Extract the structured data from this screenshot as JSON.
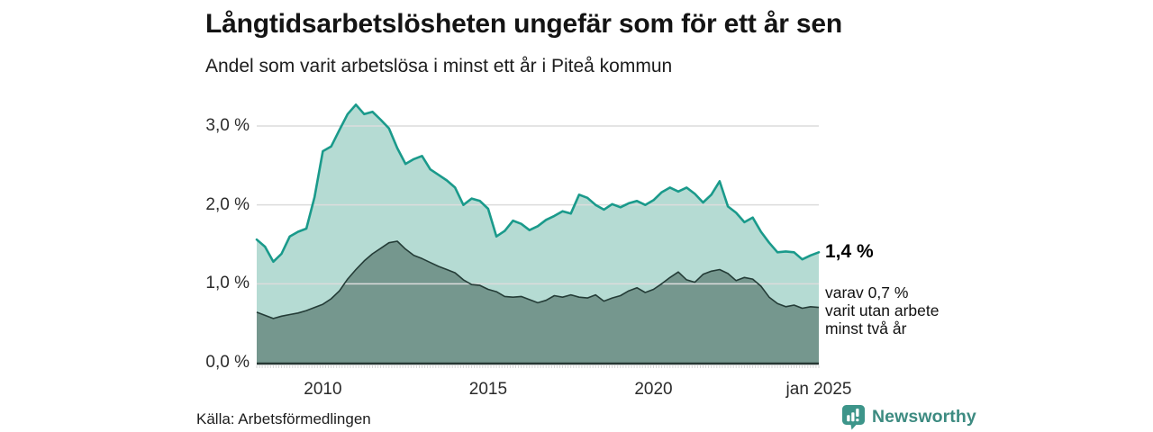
{
  "header": {
    "title": "Långtidsarbetslösheten ungefär som för ett år sen",
    "subtitle": "Andel som varit arbetslösa i minst ett år i Piteå kommun"
  },
  "source": {
    "text": "Källa: Arbetsförmedlingen"
  },
  "logo": {
    "text": "Newsworthy",
    "icon": "bar-chart-speech-bubble-icon",
    "color": "#3d958a"
  },
  "colors": {
    "background": "#ffffff",
    "grid": "#dcdcdc",
    "baseline": "#263733",
    "month_tick": "#00000029",
    "title_text": "#141414",
    "axis_text": "#2b2b2b"
  },
  "chart_data": {
    "type": "area",
    "title": "Långtidsarbetslösheten ungefär som för ett år sen",
    "subtitle": "Andel som varit arbetslösa i minst ett år i Piteå kommun",
    "unit": "%",
    "xlabel": "",
    "ylabel": "",
    "xlim": [
      2008,
      2025
    ],
    "ylim": [
      0,
      3.4
    ],
    "grid": "horizontal",
    "legend_position": "none",
    "x_ticks": [
      {
        "label": "2010",
        "year": 2010
      },
      {
        "label": "2015",
        "year": 2015
      },
      {
        "label": "2020",
        "year": 2020
      },
      {
        "label": "jan 2025",
        "year": 2025
      }
    ],
    "y_ticks": [
      {
        "label": "0,0 %",
        "value": 0
      },
      {
        "label": "1,0 %",
        "value": 1
      },
      {
        "label": "2,0 %",
        "value": 2
      },
      {
        "label": "3,0 %",
        "value": 3
      }
    ],
    "annotations": {
      "primary": {
        "text": "1,4 %",
        "value": 1.4,
        "at_year": 2025
      },
      "secondary": {
        "lines": [
          "varav 0,7 %",
          "varit utan arbete",
          "minst två år"
        ],
        "value": 0.7,
        "at_year": 2025
      }
    },
    "series": [
      {
        "name": "Arbetslösa minst ett år",
        "end_label": "1,4 %",
        "line_color": "#1a9a8b",
        "fill_color": "#b5dbd3",
        "line_width": 2.6,
        "points": [
          [
            2008.0,
            1.56
          ],
          [
            2008.25,
            1.47
          ],
          [
            2008.5,
            1.28
          ],
          [
            2008.75,
            1.38
          ],
          [
            2009.0,
            1.6
          ],
          [
            2009.25,
            1.66
          ],
          [
            2009.5,
            1.7
          ],
          [
            2009.75,
            2.1
          ],
          [
            2010.0,
            2.68
          ],
          [
            2010.25,
            2.74
          ],
          [
            2010.5,
            2.95
          ],
          [
            2010.75,
            3.15
          ],
          [
            2011.0,
            3.27
          ],
          [
            2011.25,
            3.15
          ],
          [
            2011.5,
            3.18
          ],
          [
            2011.75,
            3.08
          ],
          [
            2012.0,
            2.97
          ],
          [
            2012.25,
            2.72
          ],
          [
            2012.5,
            2.52
          ],
          [
            2012.75,
            2.58
          ],
          [
            2013.0,
            2.62
          ],
          [
            2013.25,
            2.45
          ],
          [
            2013.5,
            2.38
          ],
          [
            2013.75,
            2.31
          ],
          [
            2014.0,
            2.22
          ],
          [
            2014.25,
            2.0
          ],
          [
            2014.5,
            2.08
          ],
          [
            2014.75,
            2.05
          ],
          [
            2015.0,
            1.95
          ],
          [
            2015.25,
            1.6
          ],
          [
            2015.5,
            1.67
          ],
          [
            2015.75,
            1.8
          ],
          [
            2016.0,
            1.76
          ],
          [
            2016.25,
            1.68
          ],
          [
            2016.5,
            1.73
          ],
          [
            2016.75,
            1.81
          ],
          [
            2017.0,
            1.86
          ],
          [
            2017.25,
            1.92
          ],
          [
            2017.5,
            1.89
          ],
          [
            2017.75,
            2.13
          ],
          [
            2018.0,
            2.09
          ],
          [
            2018.25,
            2.0
          ],
          [
            2018.5,
            1.94
          ],
          [
            2018.75,
            2.01
          ],
          [
            2019.0,
            1.97
          ],
          [
            2019.25,
            2.02
          ],
          [
            2019.5,
            2.05
          ],
          [
            2019.75,
            2.0
          ],
          [
            2020.0,
            2.06
          ],
          [
            2020.25,
            2.16
          ],
          [
            2020.5,
            2.22
          ],
          [
            2020.75,
            2.17
          ],
          [
            2021.0,
            2.22
          ],
          [
            2021.25,
            2.14
          ],
          [
            2021.5,
            2.03
          ],
          [
            2021.75,
            2.13
          ],
          [
            2022.0,
            2.3
          ],
          [
            2022.25,
            1.98
          ],
          [
            2022.5,
            1.9
          ],
          [
            2022.75,
            1.78
          ],
          [
            2023.0,
            1.84
          ],
          [
            2023.25,
            1.66
          ],
          [
            2023.5,
            1.52
          ],
          [
            2023.75,
            1.4
          ],
          [
            2024.0,
            1.41
          ],
          [
            2024.25,
            1.4
          ],
          [
            2024.5,
            1.31
          ],
          [
            2024.75,
            1.36
          ],
          [
            2025.0,
            1.4
          ]
        ]
      },
      {
        "name": "Varav utan arbete minst två år",
        "end_label": "0,7 %",
        "line_color": "#243c37",
        "fill_color": "#75978e",
        "line_width": 1.6,
        "points": [
          [
            2008.0,
            0.64
          ],
          [
            2008.25,
            0.6
          ],
          [
            2008.5,
            0.56
          ],
          [
            2008.75,
            0.59
          ],
          [
            2009.0,
            0.61
          ],
          [
            2009.25,
            0.63
          ],
          [
            2009.5,
            0.66
          ],
          [
            2009.75,
            0.7
          ],
          [
            2010.0,
            0.74
          ],
          [
            2010.25,
            0.81
          ],
          [
            2010.5,
            0.91
          ],
          [
            2010.75,
            1.06
          ],
          [
            2011.0,
            1.18
          ],
          [
            2011.25,
            1.29
          ],
          [
            2011.5,
            1.38
          ],
          [
            2011.75,
            1.45
          ],
          [
            2012.0,
            1.52
          ],
          [
            2012.25,
            1.54
          ],
          [
            2012.5,
            1.44
          ],
          [
            2012.75,
            1.36
          ],
          [
            2013.0,
            1.32
          ],
          [
            2013.25,
            1.27
          ],
          [
            2013.5,
            1.22
          ],
          [
            2013.75,
            1.18
          ],
          [
            2014.0,
            1.14
          ],
          [
            2014.25,
            1.05
          ],
          [
            2014.5,
            0.99
          ],
          [
            2014.75,
            0.98
          ],
          [
            2015.0,
            0.93
          ],
          [
            2015.25,
            0.9
          ],
          [
            2015.5,
            0.84
          ],
          [
            2015.75,
            0.83
          ],
          [
            2016.0,
            0.84
          ],
          [
            2016.25,
            0.8
          ],
          [
            2016.5,
            0.76
          ],
          [
            2016.75,
            0.79
          ],
          [
            2017.0,
            0.85
          ],
          [
            2017.25,
            0.83
          ],
          [
            2017.5,
            0.86
          ],
          [
            2017.75,
            0.83
          ],
          [
            2018.0,
            0.82
          ],
          [
            2018.25,
            0.86
          ],
          [
            2018.5,
            0.78
          ],
          [
            2018.75,
            0.82
          ],
          [
            2019.0,
            0.85
          ],
          [
            2019.25,
            0.91
          ],
          [
            2019.5,
            0.95
          ],
          [
            2019.75,
            0.89
          ],
          [
            2020.0,
            0.93
          ],
          [
            2020.25,
            1.0
          ],
          [
            2020.5,
            1.08
          ],
          [
            2020.75,
            1.15
          ],
          [
            2021.0,
            1.05
          ],
          [
            2021.25,
            1.02
          ],
          [
            2021.5,
            1.12
          ],
          [
            2021.75,
            1.16
          ],
          [
            2022.0,
            1.18
          ],
          [
            2022.25,
            1.13
          ],
          [
            2022.5,
            1.04
          ],
          [
            2022.75,
            1.08
          ],
          [
            2023.0,
            1.06
          ],
          [
            2023.25,
            0.97
          ],
          [
            2023.5,
            0.83
          ],
          [
            2023.75,
            0.75
          ],
          [
            2024.0,
            0.71
          ],
          [
            2024.25,
            0.73
          ],
          [
            2024.5,
            0.69
          ],
          [
            2024.75,
            0.71
          ],
          [
            2025.0,
            0.7
          ]
        ]
      }
    ]
  }
}
